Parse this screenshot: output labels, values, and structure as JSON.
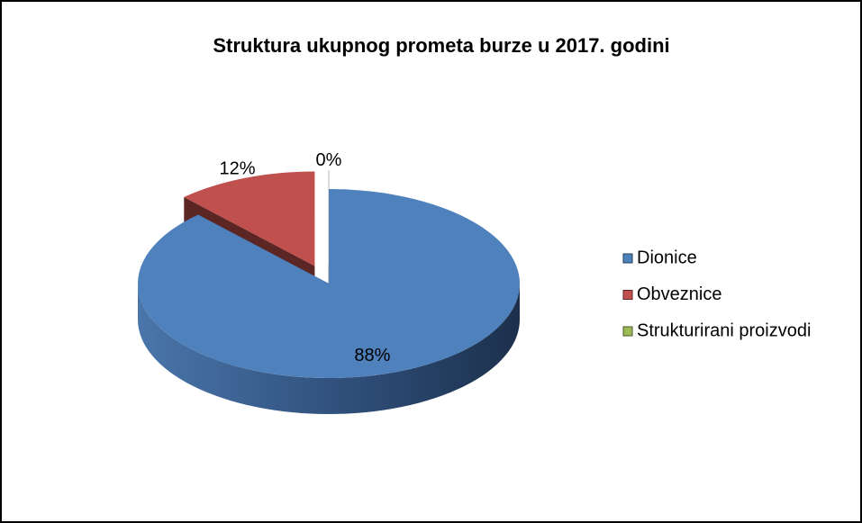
{
  "chart_data": {
    "type": "pie3d",
    "title": "Struktura ukupnog prometa burze u 2017. godini",
    "categories": [
      "Dionice",
      "Obveznice",
      "Strukturirani proizvodi"
    ],
    "values": [
      88,
      12,
      0
    ],
    "value_labels": [
      "88%",
      "12%",
      "0%"
    ],
    "colors": [
      "#4f81bd",
      "#c0504d",
      "#9bbb59"
    ],
    "legend": "right"
  }
}
